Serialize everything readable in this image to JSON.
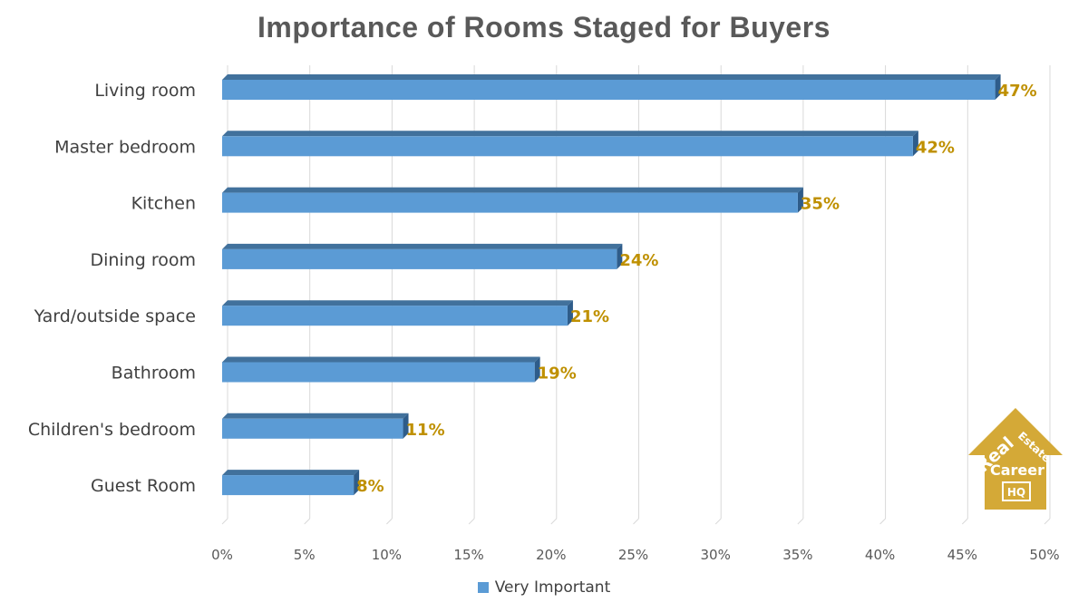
{
  "chart_data": {
    "type": "bar",
    "orientation": "horizontal",
    "title": "Importance of Rooms Staged for Buyers",
    "categories": [
      "Living room",
      "Master bedroom",
      "Kitchen",
      "Dining room",
      "Yard/outside space",
      "Bathroom",
      "Children's bedroom",
      "Guest Room"
    ],
    "series": [
      {
        "name": "Very Important",
        "values": [
          47,
          42,
          35,
          24,
          21,
          19,
          11,
          8
        ],
        "color": "#5B9BD5"
      }
    ],
    "data_labels": [
      "47%",
      "42%",
      "35%",
      "24%",
      "21%",
      "19%",
      "11%",
      "8%"
    ],
    "xlim": [
      0,
      50
    ],
    "x_ticks": [
      0,
      5,
      10,
      15,
      20,
      25,
      30,
      35,
      40,
      45,
      50
    ],
    "x_tick_labels": [
      "0%",
      "5%",
      "10%",
      "15%",
      "20%",
      "25%",
      "30%",
      "35%",
      "40%",
      "45%",
      "50%"
    ],
    "grid": true,
    "legend_position": "bottom",
    "label_color": "#BF9000",
    "bar_side_color": "#2E5C8A",
    "bar_top_color": "#41719C"
  },
  "logo": {
    "line1": "Real",
    "line2": "Estate",
    "line3": "Career",
    "line4": "HQ",
    "color": "#D4A937"
  }
}
